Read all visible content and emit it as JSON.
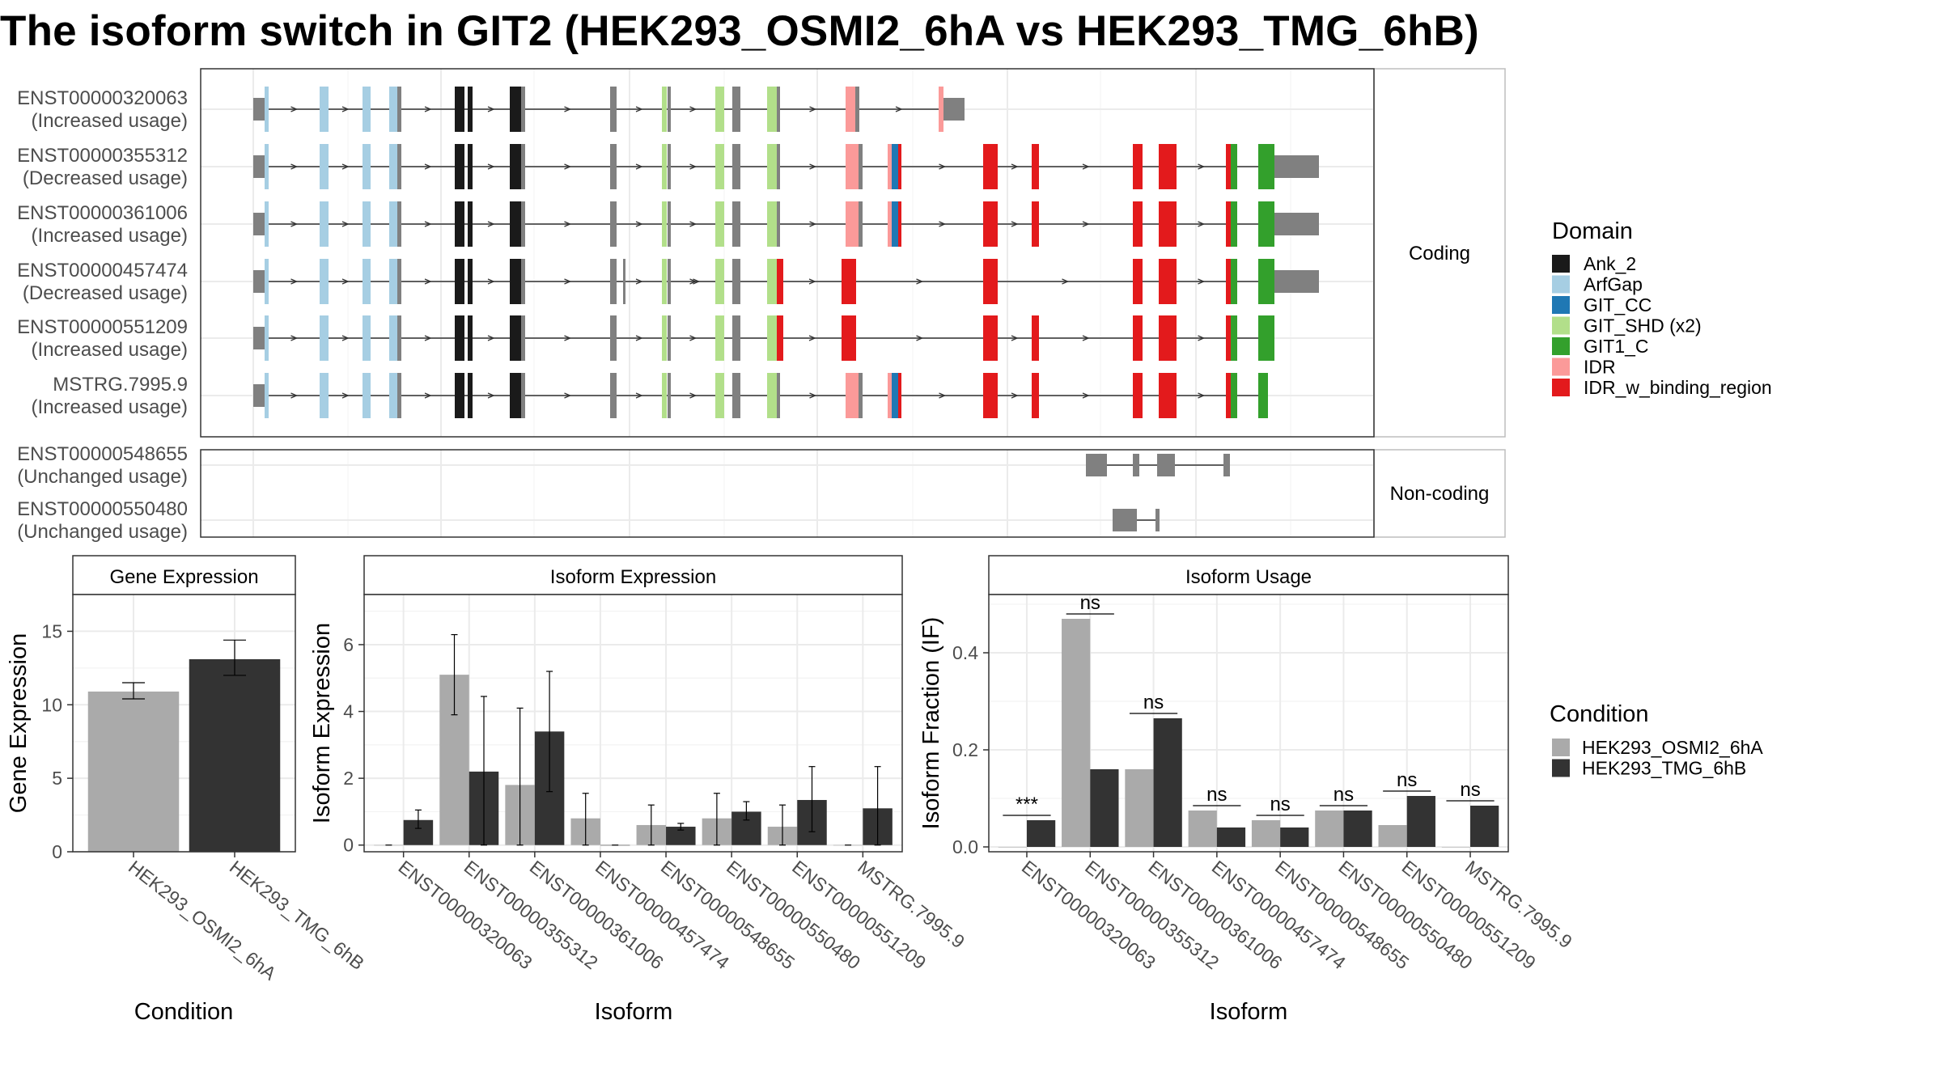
{
  "title": "The isoform switch in GIT2 (HEK293_OSMI2_6hA vs HEK293_TMG_6hB)",
  "structure_panel": {
    "facet_coding": "Coding",
    "facet_noncoding": "Non-coding",
    "coding_isoforms": [
      {
        "id": "ENST00000320063",
        "usage": "(Increased usage)"
      },
      {
        "id": "ENST00000355312",
        "usage": "(Decreased usage)"
      },
      {
        "id": "ENST00000361006",
        "usage": "(Increased usage)"
      },
      {
        "id": "ENST00000457474",
        "usage": "(Decreased usage)"
      },
      {
        "id": "ENST00000551209",
        "usage": "(Increased usage)"
      },
      {
        "id": "MSTRG.7995.9",
        "usage": "(Increased usage)"
      }
    ],
    "noncoding_isoforms": [
      {
        "id": "ENST00000548655",
        "usage": "(Unchanged usage)"
      },
      {
        "id": "ENST00000550480",
        "usage": "(Unchanged usage)"
      }
    ]
  },
  "domain_legend": {
    "title": "Domain",
    "items": [
      {
        "label": "Ank_2",
        "color": "#1a1a1a"
      },
      {
        "label": "ArfGap",
        "color": "#a6cee3"
      },
      {
        "label": "GIT_CC",
        "color": "#1f78b4"
      },
      {
        "label": "GIT_SHD (x2)",
        "color": "#b2df8a"
      },
      {
        "label": "GIT1_C",
        "color": "#33a02c"
      },
      {
        "label": "IDR",
        "color": "#fb9a99"
      },
      {
        "label": "IDR_w_binding_region",
        "color": "#e31a1c"
      }
    ]
  },
  "condition_legend": {
    "title": "Condition",
    "items": [
      {
        "label": "HEK293_OSMI2_6hA",
        "color": "#aaaaaa"
      },
      {
        "label": "HEK293_TMG_6hB",
        "color": "#333333"
      }
    ]
  },
  "chart_data": [
    {
      "type": "bar",
      "title": "Gene Expression",
      "xlabel": "Condition",
      "ylabel": "Gene Expression",
      "ylim": [
        0,
        17.5
      ],
      "yticks": [
        0,
        5,
        10,
        15
      ],
      "categories": [
        "HEK293_OSMI2_6hA",
        "HEK293_TMG_6hB"
      ],
      "values": [
        10.9,
        13.1
      ],
      "err_low": [
        10.4,
        12.0
      ],
      "err_high": [
        11.5,
        14.4
      ]
    },
    {
      "type": "bar",
      "title": "Isoform Expression",
      "xlabel": "Isoform",
      "ylabel": "Isoform Expression",
      "ylim": [
        -0.2,
        7.5
      ],
      "yticks": [
        0,
        2,
        4,
        6
      ],
      "categories": [
        "ENST00000320063",
        "ENST00000355312",
        "ENST00000361006",
        "ENST00000457474",
        "ENST00000548655",
        "ENST00000550480",
        "ENST00000551209",
        "MSTRG.7995.9"
      ],
      "series": [
        {
          "name": "HEK293_OSMI2_6hA",
          "values": [
            0.0,
            5.1,
            1.8,
            0.8,
            0.6,
            0.8,
            0.55,
            0.0
          ],
          "err_low": [
            0.0,
            3.9,
            0.0,
            0.0,
            0.0,
            0.0,
            0.0,
            0.0
          ],
          "err_high": [
            0.0,
            6.3,
            4.1,
            1.55,
            1.2,
            1.55,
            1.2,
            0.0
          ]
        },
        {
          "name": "HEK293_TMG_6hB",
          "values": [
            0.75,
            2.2,
            3.4,
            0.0,
            0.55,
            1.0,
            1.35,
            1.1
          ],
          "err_low": [
            0.5,
            0.0,
            1.6,
            0.0,
            0.45,
            0.75,
            0.4,
            0.0
          ],
          "err_high": [
            1.05,
            4.45,
            5.2,
            0.0,
            0.65,
            1.3,
            2.35,
            2.35
          ]
        }
      ]
    },
    {
      "type": "bar",
      "title": "Isoform Usage",
      "xlabel": "Isoform",
      "ylabel": "Isoform Fraction (IF)",
      "ylim": [
        -0.01,
        0.52
      ],
      "yticks": [
        0.0,
        0.2,
        0.4
      ],
      "ytick_labels": [
        "0.0",
        "0.2",
        "0.4"
      ],
      "categories": [
        "ENST00000320063",
        "ENST00000355312",
        "ENST00000361006",
        "ENST00000457474",
        "ENST00000548655",
        "ENST00000550480",
        "ENST00000551209",
        "MSTRG.7995.9"
      ],
      "series": [
        {
          "name": "HEK293_OSMI2_6hA",
          "values": [
            0.0,
            0.47,
            0.16,
            0.075,
            0.055,
            0.075,
            0.045,
            0.0
          ]
        },
        {
          "name": "HEK293_TMG_6hB",
          "values": [
            0.055,
            0.16,
            0.265,
            0.04,
            0.04,
            0.075,
            0.105,
            0.085
          ]
        }
      ],
      "significance": [
        "***",
        "ns",
        "ns",
        "ns",
        "ns",
        "ns",
        "ns",
        "ns"
      ]
    }
  ]
}
